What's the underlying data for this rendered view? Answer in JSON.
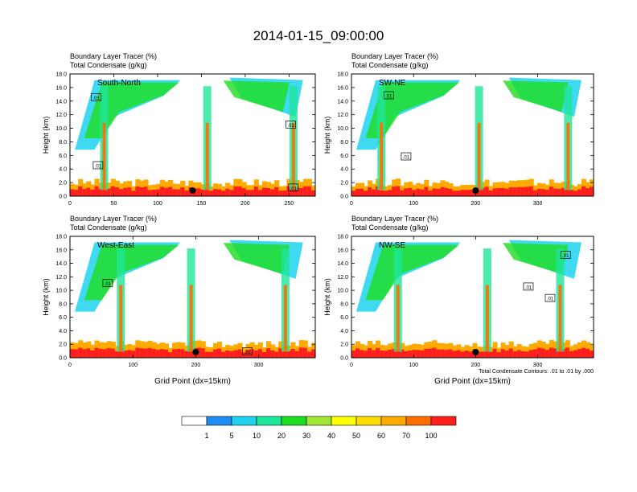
{
  "title": "2014-01-15_09:00:00",
  "footnote": "Total Condensate Contours: .01 to .01 by .000",
  "chart_data": [
    {
      "type": "heatmap",
      "name": "South-North",
      "subtitle_line1": "Boundary Layer Tracer   (%)",
      "subtitle_line2": "Total Condensate   (g/kg)",
      "ylabel": "Height (km)",
      "xlabel": "",
      "xlim": [
        0,
        280
      ],
      "ylim": [
        0,
        18
      ],
      "xticks": [
        0,
        50,
        100,
        150,
        200,
        250
      ],
      "yticks": [
        0,
        2,
        4,
        6,
        8,
        10,
        12,
        14,
        16,
        18
      ],
      "marker_x": [
        140
      ],
      "contour_labels": [
        {
          "x": 30,
          "y": 14.5,
          "text": ".01"
        },
        {
          "x": 32,
          "y": 4.5,
          "text": ".01"
        },
        {
          "x": 252,
          "y": 10.5,
          "text": ".01"
        },
        {
          "x": 255,
          "y": 1.2,
          "text": ".01"
        }
      ]
    },
    {
      "type": "heatmap",
      "name": "SW-NE",
      "subtitle_line1": "Boundary Layer Tracer   (%)",
      "subtitle_line2": "Total Condensate   (g/kg)",
      "ylabel": "Height (km)",
      "xlabel": "",
      "xlim": [
        0,
        390
      ],
      "ylim": [
        0,
        18
      ],
      "xticks": [
        0,
        100,
        200,
        300
      ],
      "yticks": [
        0,
        2,
        4,
        6,
        8,
        10,
        12,
        14,
        16,
        18
      ],
      "marker_x": [
        200
      ],
      "contour_labels": [
        {
          "x": 60,
          "y": 14.8,
          "text": ".01"
        },
        {
          "x": 88,
          "y": 5.8,
          "text": ".01"
        }
      ]
    },
    {
      "type": "heatmap",
      "name": "West-East",
      "subtitle_line1": "Boundary Layer Tracer   (%)",
      "subtitle_line2": "Total Condensate   (g/kg)",
      "ylabel": "Height (km)",
      "xlabel": "Grid Point (dx=15km)",
      "xlim": [
        0,
        390
      ],
      "ylim": [
        0,
        18
      ],
      "xticks": [
        0,
        100,
        200,
        300
      ],
      "yticks": [
        0,
        2,
        4,
        6,
        8,
        10,
        12,
        14,
        16,
        18
      ],
      "marker_x": [
        200
      ],
      "contour_labels": [
        {
          "x": 60,
          "y": 11,
          "text": ".01"
        },
        {
          "x": 282,
          "y": 0.9,
          "text": ".01"
        }
      ]
    },
    {
      "type": "heatmap",
      "name": "NW-SE",
      "subtitle_line1": "Boundary Layer Tracer   (%)",
      "subtitle_line2": "Total Condensate   (g/kg)",
      "ylabel": "Height (km)",
      "xlabel": "Grid Point (dx=15km)",
      "xlim": [
        0,
        390
      ],
      "ylim": [
        0,
        18
      ],
      "xticks": [
        0,
        100,
        200,
        300
      ],
      "yticks": [
        0,
        2,
        4,
        6,
        8,
        10,
        12,
        14,
        16,
        18
      ],
      "marker_x": [
        200
      ],
      "contour_labels": [
        {
          "x": 285,
          "y": 10.5,
          "text": ".01"
        },
        {
          "x": 320,
          "y": 8.8,
          "text": ".01"
        },
        {
          "x": 345,
          "y": 15.2,
          "text": ".01"
        }
      ]
    }
  ],
  "colorbar": {
    "colors": [
      "#ffffff",
      "#1e8cf0",
      "#1ed2f0",
      "#1ee699",
      "#1edc1e",
      "#a0e632",
      "#ffff00",
      "#ffdc00",
      "#ffaa00",
      "#ff6e00",
      "#ff1e1e"
    ],
    "labels": [
      "1",
      "5",
      "10",
      "20",
      "30",
      "40",
      "50",
      "60",
      "70",
      "100"
    ]
  }
}
